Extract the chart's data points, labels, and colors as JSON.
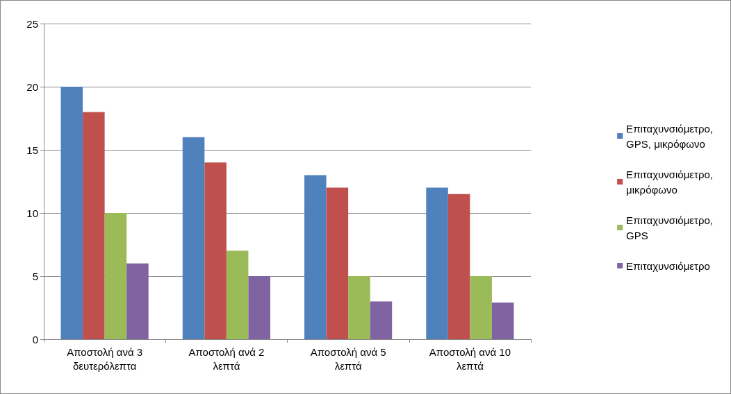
{
  "chart_data": {
    "type": "bar",
    "categories": [
      "Αποστολή ανά 3 δευτερόλεπτα",
      "Αποστολή ανά 2 λεπτά",
      "Αποστολή ανά 5 λεπτά",
      "Αποστολή ανά 10 λεπτά"
    ],
    "series": [
      {
        "name": "Επιταχυνσιόμετρο, GPS, μικρόφωνο",
        "color": "#4f81bd",
        "values": [
          20,
          16,
          13,
          12
        ]
      },
      {
        "name": "Επιταχυνσιόμετρο, μικρόφωνο",
        "color": "#c0504d",
        "values": [
          18,
          14,
          12,
          11.5
        ]
      },
      {
        "name": "Επιταχυνσιόμετρο, GPS",
        "color": "#9bbb59",
        "values": [
          10,
          7,
          5,
          5
        ]
      },
      {
        "name": "Επιταχυνσιόμετρο",
        "color": "#8064a2",
        "values": [
          6,
          5,
          3,
          2.9
        ]
      }
    ],
    "ylim": [
      0,
      25
    ],
    "yticks": [
      0,
      5,
      10,
      15,
      20,
      25
    ],
    "grid": "y",
    "legend": "right"
  }
}
